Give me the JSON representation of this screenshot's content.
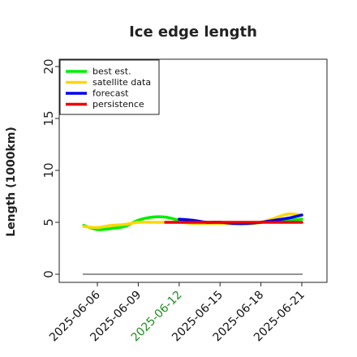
{
  "chart_data": {
    "type": "line",
    "title": "Ice edge length",
    "ylabel": "Length (1000km)",
    "xlabel": "",
    "ylim": [
      0,
      21
    ],
    "yticks": [
      0,
      5,
      10,
      15,
      20
    ],
    "x_tick_labels": [
      "2025-06-06",
      "2025-06-09",
      "2025-06-12",
      "2025-06-15",
      "2025-06-18",
      "2025-06-21"
    ],
    "highlight_tick": "2025-06-12",
    "highlight_color": "#228b22",
    "legend_position": "top-left",
    "grid": false,
    "series": [
      {
        "name": "best est.",
        "color": "#00ee00",
        "x": [
          "2025-06-05",
          "2025-06-06",
          "2025-06-07",
          "2025-06-08",
          "2025-06-09",
          "2025-06-10",
          "2025-06-11",
          "2025-06-12",
          "2025-06-13",
          "2025-06-14",
          "2025-06-15",
          "2025-06-16",
          "2025-06-17",
          "2025-06-18",
          "2025-06-19",
          "2025-06-20",
          "2025-06-21"
        ],
        "values": [
          4.7,
          4.3,
          4.4,
          4.6,
          5.2,
          5.5,
          5.5,
          5.2,
          5.0,
          5.0,
          5.0,
          4.9,
          4.9,
          5.0,
          5.1,
          5.2,
          5.3
        ]
      },
      {
        "name": "satellite data",
        "color": "#ffd700",
        "x": [
          "2025-06-05",
          "2025-06-06",
          "2025-06-07",
          "2025-06-08",
          "2025-06-09",
          "2025-06-10",
          "2025-06-11",
          "2025-06-12",
          "2025-06-13",
          "2025-06-14",
          "2025-06-15",
          "2025-06-16",
          "2025-06-17",
          "2025-06-18",
          "2025-06-19",
          "2025-06-20",
          "2025-06-21"
        ],
        "values": [
          4.6,
          4.5,
          4.7,
          4.8,
          5.0,
          5.0,
          5.0,
          5.0,
          4.9,
          4.9,
          4.9,
          4.8,
          4.8,
          5.0,
          5.4,
          5.8,
          5.7
        ]
      },
      {
        "name": "forecast",
        "color": "#0000ee",
        "x": [
          "2025-06-12",
          "2025-06-13",
          "2025-06-14",
          "2025-06-15",
          "2025-06-16",
          "2025-06-17",
          "2025-06-18",
          "2025-06-19",
          "2025-06-20",
          "2025-06-21"
        ],
        "values": [
          5.3,
          5.2,
          5.0,
          5.0,
          4.9,
          4.9,
          5.0,
          5.2,
          5.4,
          5.7
        ]
      },
      {
        "name": "persistence",
        "color": "#ee0000",
        "x": [
          "2025-06-11",
          "2025-06-21"
        ],
        "values": [
          5.0,
          5.0
        ]
      }
    ],
    "reference_line": {
      "y": 0,
      "color": "#555555"
    }
  }
}
